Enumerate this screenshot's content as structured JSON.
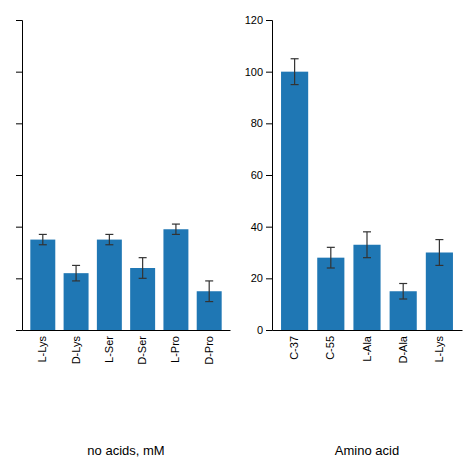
{
  "chart_data": [
    {
      "type": "bar",
      "categories": [
        "L-Lys",
        "D-Lys",
        "L-Ser",
        "D-Ser",
        "L-Pro",
        "D-Pro"
      ],
      "values": [
        35,
        22,
        35,
        24,
        39,
        15
      ],
      "errors": [
        2,
        3,
        2,
        4,
        2,
        4
      ],
      "xlabel": "no acids, mM",
      "ylim": [
        0,
        120
      ],
      "yticks": [
        0,
        20,
        40,
        60,
        80,
        100,
        120
      ],
      "tick_labels": "x"
    },
    {
      "type": "bar",
      "categories": [
        "C-37",
        "C-55",
        "L-Ala",
        "D-Ala",
        "L-Lys"
      ],
      "values": [
        100,
        28,
        33,
        15,
        30
      ],
      "errors": [
        5,
        4,
        5,
        3,
        5
      ],
      "xlabel": "Amino acid",
      "ylim": [
        0,
        120
      ],
      "yticks": [
        0,
        20,
        40,
        60,
        80,
        100,
        120
      ]
    }
  ]
}
